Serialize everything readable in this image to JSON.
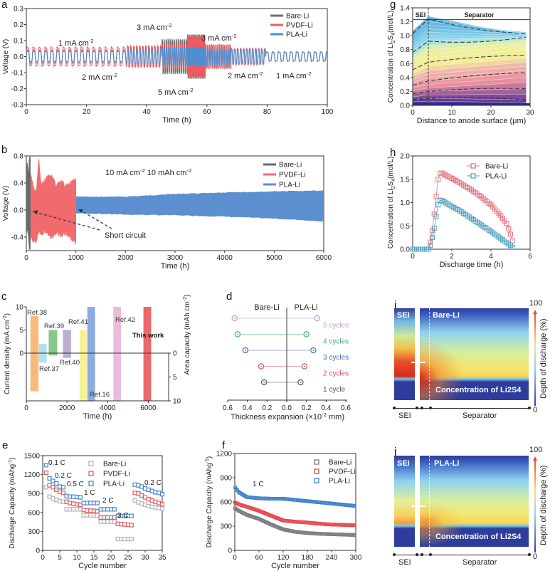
{
  "chart_data": [
    {
      "panel": "a",
      "type": "line",
      "xlim": [
        0,
        100
      ],
      "ylim": [
        -0.3,
        0.3
      ],
      "xticks": [
        "0",
        "20",
        "40",
        "60",
        "80",
        "100"
      ],
      "yticks": [
        "-0.3",
        "-0.2",
        "-0.1",
        "0.0",
        "0.1",
        "0.2",
        "0.3"
      ],
      "xlabel": "Time (h)",
      "ylabel": "Voltage (V)",
      "legend": "top-right",
      "series": [
        {
          "name": "Bare-Li",
          "color": "#6e6e6e"
        },
        {
          "name": "PVDF-Li",
          "color": "#ef5a5f"
        },
        {
          "name": "PLA-Li",
          "color": "#4f8fd0"
        }
      ],
      "segments": [
        {
          "start_h": 0,
          "end_h": 33.5,
          "cycle_period_h": 2,
          "amplitude_v": [
            0.05,
            0.07,
            0.04
          ]
        },
        {
          "start_h": 33.5,
          "end_h": 45,
          "cycle_period_h": 1,
          "amplitude_v": [
            0.07,
            0.08,
            0.05
          ]
        },
        {
          "start_h": 45,
          "end_h": 53.5,
          "cycle_period_h": 0.67,
          "amplitude_v": [
            0.13,
            0.09,
            0.07
          ]
        },
        {
          "start_h": 53.5,
          "end_h": 59.5,
          "cycle_period_h": 0.4,
          "amplitude_v": [
            0.16,
            0.15,
            0.07
          ]
        },
        {
          "start_h": 59.5,
          "end_h": 68,
          "cycle_period_h": 0.67,
          "amplitude_v": [
            0.09,
            0.09,
            0.06
          ]
        },
        {
          "start_h": 68,
          "end_h": 79.5,
          "cycle_period_h": 1,
          "amplitude_v": [
            0.06,
            0.06,
            0.05
          ]
        },
        {
          "start_h": 79.5,
          "end_h": 100,
          "cycle_period_h": 2,
          "amplitude_v": [
            0.035,
            0.035,
            0.035
          ]
        }
      ],
      "annotations": [
        [
          [
            "1 mA cm",
            ""
          ],
          [
            "-2",
            "sup"
          ]
        ],
        [
          [
            "2 mA cm",
            ""
          ],
          [
            "-2",
            "sup"
          ]
        ],
        [
          [
            "3 mA cm",
            ""
          ],
          [
            "-2",
            "sup"
          ]
        ],
        [
          [
            "5 mA cm",
            ""
          ],
          [
            "-2",
            "sup"
          ]
        ],
        [
          [
            "3 mA cm",
            ""
          ],
          [
            "-2",
            "sup"
          ]
        ],
        [
          [
            "2 mA cm",
            ""
          ],
          [
            "-2",
            "sup"
          ]
        ],
        [
          [
            "1 mA cm",
            ""
          ],
          [
            "-2",
            "sup"
          ]
        ]
      ]
    },
    {
      "panel": "b",
      "type": "area",
      "xlim": [
        0,
        6000
      ],
      "ylim": [
        -0.6,
        0.8
      ],
      "xticks": [
        "0",
        "1000",
        "2000",
        "3000",
        "4000",
        "5000",
        "6000"
      ],
      "yticks": [
        "-0.4",
        "0.0",
        "0.4",
        "0.8"
      ],
      "xlabel": "Time (h)",
      "ylabel": "Voltage (V)",
      "legend": "top-right",
      "series": [
        {
          "name": "Bare-Li",
          "color": "#6a6a6a",
          "x": [
            0,
            20,
            40,
            60,
            80
          ],
          "upper": [
            0.6,
            0.75,
            0.55,
            0.8,
            0.8
          ],
          "lower": [
            -0.45,
            -0.3,
            -0.4,
            -0.6,
            -0.6
          ]
        },
        {
          "name": "PVDF-Li",
          "color": "#f06a6e",
          "x": [
            80,
            150,
            200,
            250,
            300,
            400,
            500,
            600,
            700,
            800,
            900,
            1000
          ],
          "upper": [
            0.6,
            0.35,
            0.3,
            0.8,
            0.4,
            0.5,
            0.55,
            0.4,
            0.45,
            0.4,
            0.45,
            0.48
          ],
          "lower": [
            -0.45,
            -0.5,
            -0.52,
            -0.35,
            -0.38,
            -0.35,
            -0.45,
            -0.38,
            -0.4,
            -0.38,
            -0.45,
            -0.52
          ]
        },
        {
          "name": "PLA-Li",
          "color": "#5b8fd0",
          "x": [
            1000,
            2000,
            3000,
            4000,
            5000,
            6000
          ],
          "upper": [
            0.2,
            0.2,
            0.24,
            0.26,
            0.28,
            0.29
          ],
          "lower": [
            -0.05,
            -0.07,
            -0.08,
            -0.1,
            -0.13,
            -0.17
          ]
        }
      ],
      "condition": [
        [
          "10 mA cm",
          ""
        ],
        [
          "-2",
          "sup"
        ],
        [
          "   10 mAh cm",
          ""
        ],
        [
          "-2",
          "sup"
        ]
      ],
      "annotation": "Short circuit"
    },
    {
      "panel": "c",
      "type": "bar",
      "xlim": [
        0,
        7000
      ],
      "ylim_current": [
        0,
        10
      ],
      "ylim_capacity": [
        0,
        10
      ],
      "xticks": [
        "0",
        "2000",
        "4000",
        "6000"
      ],
      "yticks_left": [
        "0",
        "5",
        "10"
      ],
      "yticks_right": [
        "0",
        "5",
        "10"
      ],
      "xlabel": "Time (h)",
      "ylabel_left": [
        [
          "Current density (mA cm",
          ""
        ],
        [
          "-2",
          "sup"
        ],
        [
          ")",
          ""
        ]
      ],
      "ylabel_right": [
        [
          "Area capacity (mAh cm",
          ""
        ],
        [
          "-2",
          "sup"
        ],
        [
          ")",
          ""
        ]
      ],
      "bars": [
        {
          "label": "Ref.38",
          "start_h": 200,
          "end_h": 600,
          "current_density": 8,
          "area_capacity": 8,
          "color": "#f7b26e"
        },
        {
          "label": "Ref.37",
          "start_h": 620,
          "end_h": 1000,
          "current_density": 2,
          "area_capacity": 2,
          "color": "#a8dcef"
        },
        {
          "label": "Ref.39",
          "start_h": 1100,
          "end_h": 1520,
          "current_density": 5,
          "area_capacity": 0.5,
          "color": "#7ec07e"
        },
        {
          "label": "Ref.40",
          "start_h": 1800,
          "end_h": 2200,
          "current_density": 5,
          "area_capacity": 1,
          "color": "#b7a3cc"
        },
        {
          "label": "Ref.41",
          "start_h": 2620,
          "end_h": 2970,
          "current_density": 5,
          "area_capacity": 10,
          "color": "#f5f08a"
        },
        {
          "label": "Ref.16",
          "start_h": 3000,
          "end_h": 3380,
          "current_density": 10,
          "area_capacity": 10,
          "color": "#7fa2dd"
        },
        {
          "label": "Ref.42",
          "start_h": 4280,
          "end_h": 4660,
          "current_density": 10,
          "area_capacity": 10,
          "color": "#e8b5d5"
        },
        {
          "label": "This work",
          "start_h": 5760,
          "end_h": 6140,
          "current_density": 10,
          "area_capacity": 10,
          "color": "#e8565a"
        }
      ]
    },
    {
      "panel": "d",
      "type": "dumbbell",
      "headers": [
        "Bare-Li",
        "PLA-Li"
      ],
      "xlabel": [
        [
          "Thickness expansion (×10",
          ""
        ],
        [
          "-2",
          "sup"
        ],
        [
          " mm)",
          ""
        ]
      ],
      "xticks": [
        "0.6",
        "0.4",
        "0.2",
        "0.0",
        "0.2",
        "0.4",
        "0.6"
      ],
      "xtick_values": [
        -0.6,
        -0.4,
        -0.2,
        0,
        0.2,
        0.4,
        0.6
      ],
      "rows": [
        {
          "label": "5 cycles",
          "bare": 0.53,
          "pla": 0.31,
          "color": "#c39bd0"
        },
        {
          "label": "4 cycles",
          "bare": 0.5,
          "pla": 0.2,
          "color": "#3fb06a"
        },
        {
          "label": "3 cycles",
          "bare": 0.42,
          "pla": 0.27,
          "color": "#4a6bb0"
        },
        {
          "label": "2 cycles",
          "bare": 0.26,
          "pla": 0.18,
          "color": "#d9535a"
        },
        {
          "label": "1 cycle",
          "bare": 0.23,
          "pla": 0.14,
          "color": "#555555"
        }
      ]
    },
    {
      "panel": "e",
      "type": "scatter",
      "xlim": [
        0,
        35
      ],
      "ylim": [
        0,
        1500
      ],
      "xticks": [
        "0",
        "5",
        "10",
        "15",
        "20",
        "25",
        "30",
        "35"
      ],
      "yticks": [
        "0",
        "300",
        "600",
        "900",
        "1200",
        "1500"
      ],
      "xlabel": "Cycle number",
      "ylabel": [
        [
          "Discharge Capacity (mAhg",
          ""
        ],
        [
          "-1",
          "sup"
        ],
        [
          ")",
          ""
        ]
      ],
      "legend": "top-center",
      "x": [
        1,
        2,
        3,
        4,
        5,
        6,
        7,
        8,
        9,
        10,
        11,
        12,
        13,
        14,
        15,
        16,
        17,
        18,
        19,
        20,
        21,
        22,
        23,
        24,
        25,
        26,
        27,
        28,
        29,
        30,
        31,
        32,
        33,
        34,
        35
      ],
      "series": [
        {
          "name": "Bare-Li",
          "color": "#b4b4b4",
          "values": [
            1000,
            850,
            820,
            800,
            780,
            770,
            650,
            650,
            650,
            650,
            650,
            555,
            555,
            555,
            555,
            555,
            455,
            455,
            455,
            455,
            455,
            180,
            180,
            180,
            180,
            180,
            790,
            760,
            740,
            720,
            700,
            690,
            680,
            670,
            660
          ]
        },
        {
          "name": "PVDF-Li",
          "color": "#e05a60",
          "values": [
            1230,
            1030,
            1000,
            960,
            930,
            910,
            770,
            750,
            740,
            730,
            720,
            640,
            630,
            630,
            625,
            620,
            520,
            520,
            520,
            520,
            520,
            420,
            415,
            410,
            405,
            400,
            910,
            900,
            870,
            840,
            810,
            790,
            770,
            750,
            730
          ]
        },
        {
          "name": "PLA-Li",
          "color": "#4a86c8",
          "values": [
            1350,
            1140,
            1100,
            1060,
            1010,
            1000,
            860,
            850,
            850,
            845,
            840,
            750,
            750,
            750,
            750,
            750,
            650,
            650,
            650,
            650,
            650,
            545,
            545,
            545,
            545,
            545,
            1040,
            1030,
            1010,
            980,
            960,
            940,
            920,
            910,
            890
          ]
        }
      ],
      "rate_labels": [
        "0.1 C",
        "0.2 C",
        "0.5 C",
        "1 C",
        "2 C",
        "3 C",
        "0.2 C"
      ]
    },
    {
      "panel": "f",
      "type": "scatter",
      "xlim": [
        0,
        300
      ],
      "ylim": [
        0,
        1200
      ],
      "xticks": [
        "0",
        "60",
        "120",
        "180",
        "240",
        "300"
      ],
      "yticks": [
        "0",
        "300",
        "600",
        "900",
        "1200"
      ],
      "xlabel": "Cycle number",
      "ylabel": [
        [
          "Discharge Capacity (mAhg",
          ""
        ],
        [
          "-1",
          "sup"
        ],
        [
          ")",
          ""
        ]
      ],
      "legend": "top-right",
      "annotation": "1 C",
      "x": [
        1,
        10,
        30,
        60,
        90,
        120,
        150,
        180,
        210,
        240,
        270,
        300
      ],
      "series": [
        {
          "name": "Bare-Li",
          "color": "#7a7a7a",
          "values": [
            520,
            490,
            440,
            390,
            320,
            260,
            230,
            215,
            205,
            200,
            195,
            190
          ]
        },
        {
          "name": "PVDF-Li",
          "color": "#e8464c",
          "values": [
            590,
            570,
            540,
            490,
            430,
            370,
            355,
            345,
            330,
            320,
            315,
            310
          ]
        },
        {
          "name": "PLA-Li",
          "color": "#3f7fc8",
          "values": [
            780,
            720,
            660,
            645,
            640,
            640,
            625,
            610,
            595,
            580,
            565,
            550
          ]
        }
      ]
    },
    {
      "panel": "g",
      "type": "line",
      "xlim": [
        0,
        30
      ],
      "ylim": [
        0,
        1.4
      ],
      "xticks": [
        "0",
        "10",
        "20",
        "30"
      ],
      "yticks": [
        "0.0",
        "0.2",
        "0.4",
        "0.6",
        "0.8",
        "1.0",
        "1.2",
        "1.4"
      ],
      "xlabel": "Distance to anode surface (μm)",
      "ylabel": [
        [
          "Concentration of Li",
          ""
        ],
        [
          "2",
          "sub"
        ],
        [
          "S",
          ""
        ],
        [
          "4",
          "sub"
        ],
        [
          "(mol/L)",
          ""
        ]
      ],
      "regions": [
        "SEI",
        "Separator"
      ],
      "profile_x": [
        0,
        4,
        29
      ],
      "profiles": [
        [
          1.07,
          1.28,
          1.0
        ],
        [
          1.03,
          1.24,
          1.03
        ],
        [
          0.99,
          1.2,
          1.05
        ],
        [
          0.95,
          1.15,
          1.04
        ],
        [
          0.91,
          1.1,
          1.02
        ],
        [
          0.87,
          1.05,
          1.0
        ],
        [
          0.83,
          1.0,
          0.98
        ],
        [
          0.79,
          0.95,
          0.97
        ],
        [
          0.76,
          0.92,
          0.98
        ],
        [
          0.71,
          0.86,
          0.94
        ],
        [
          0.66,
          0.8,
          0.9
        ],
        [
          0.61,
          0.74,
          0.86
        ],
        [
          0.56,
          0.68,
          0.8
        ],
        [
          0.51,
          0.62,
          0.72
        ],
        [
          0.46,
          0.56,
          0.68
        ],
        [
          0.42,
          0.5,
          0.62
        ],
        [
          0.37,
          0.45,
          0.56
        ],
        [
          0.33,
          0.4,
          0.5
        ],
        [
          0.29,
          0.35,
          0.47
        ],
        [
          0.25,
          0.3,
          0.4
        ],
        [
          0.21,
          0.25,
          0.33
        ],
        [
          0.17,
          0.2,
          0.24
        ],
        [
          0.12,
          0.15,
          0.16
        ],
        [
          0.08,
          0.1,
          0.08
        ],
        [
          0.05,
          0.06,
          0.04
        ],
        [
          0.02,
          0.03,
          0.02
        ]
      ],
      "dashed_profiles": [
        1,
        8,
        13,
        18,
        21,
        23
      ]
    },
    {
      "panel": "h",
      "type": "line",
      "xlim": [
        0,
        6
      ],
      "ylim": [
        0,
        2.0
      ],
      "xticks": [
        "0",
        "2",
        "4",
        "6"
      ],
      "yticks": [
        "0.0",
        "0.5",
        "1.0",
        "1.5",
        "2.0"
      ],
      "xlabel": "Discharge time (h)",
      "ylabel": [
        [
          "Concentration of Li",
          ""
        ],
        [
          "2",
          "sub"
        ],
        [
          "S",
          ""
        ],
        [
          "4",
          "sub"
        ],
        [
          "(mol/L)",
          ""
        ]
      ],
      "legend": "top-right",
      "x": [
        0,
        0.8,
        0.9,
        1.0,
        1.1,
        1.2,
        1.3,
        1.4,
        1.5,
        2,
        2.5,
        3,
        3.5,
        4,
        4.5,
        4.8,
        5.0,
        5.1
      ],
      "series": [
        {
          "name": "Bare-Li",
          "color": "#e8707f",
          "values": [
            0,
            0,
            0.15,
            0.4,
            0.75,
            1.13,
            1.5,
            1.63,
            1.63,
            1.52,
            1.4,
            1.27,
            1.12,
            0.95,
            0.72,
            0.55,
            0.32,
            0.18
          ]
        },
        {
          "name": "PLA-Li",
          "color": "#4fa2c2",
          "values": [
            0,
            0,
            0.08,
            0.25,
            0.45,
            0.7,
            0.95,
            1.05,
            1.04,
            0.92,
            0.8,
            0.66,
            0.52,
            0.38,
            0.23,
            0.14,
            0.08,
            0.04
          ]
        }
      ]
    },
    {
      "panel": "i",
      "type": "heatmap",
      "sei_label": "SEI",
      "sample": "Bare-Li",
      "caption": "Concentration of Li2S4",
      "axis_labels": [
        "SEI",
        "Separator"
      ],
      "colorbar": {
        "label": "Depth of discharge (%)",
        "min": "0",
        "max": "100"
      }
    },
    {
      "panel": "j",
      "type": "heatmap",
      "sei_label": "SEI",
      "sample": "PLA-Li",
      "caption": "Concentration of Li2S4",
      "axis_labels": [
        "SEI",
        "Separator"
      ],
      "colorbar": {
        "label": "Depth of discharge (%)",
        "min": "0",
        "max": "100"
      }
    }
  ],
  "panels": [
    "a",
    "b",
    "c",
    "d",
    "e",
    "f",
    "g",
    "h",
    "i",
    "j"
  ]
}
